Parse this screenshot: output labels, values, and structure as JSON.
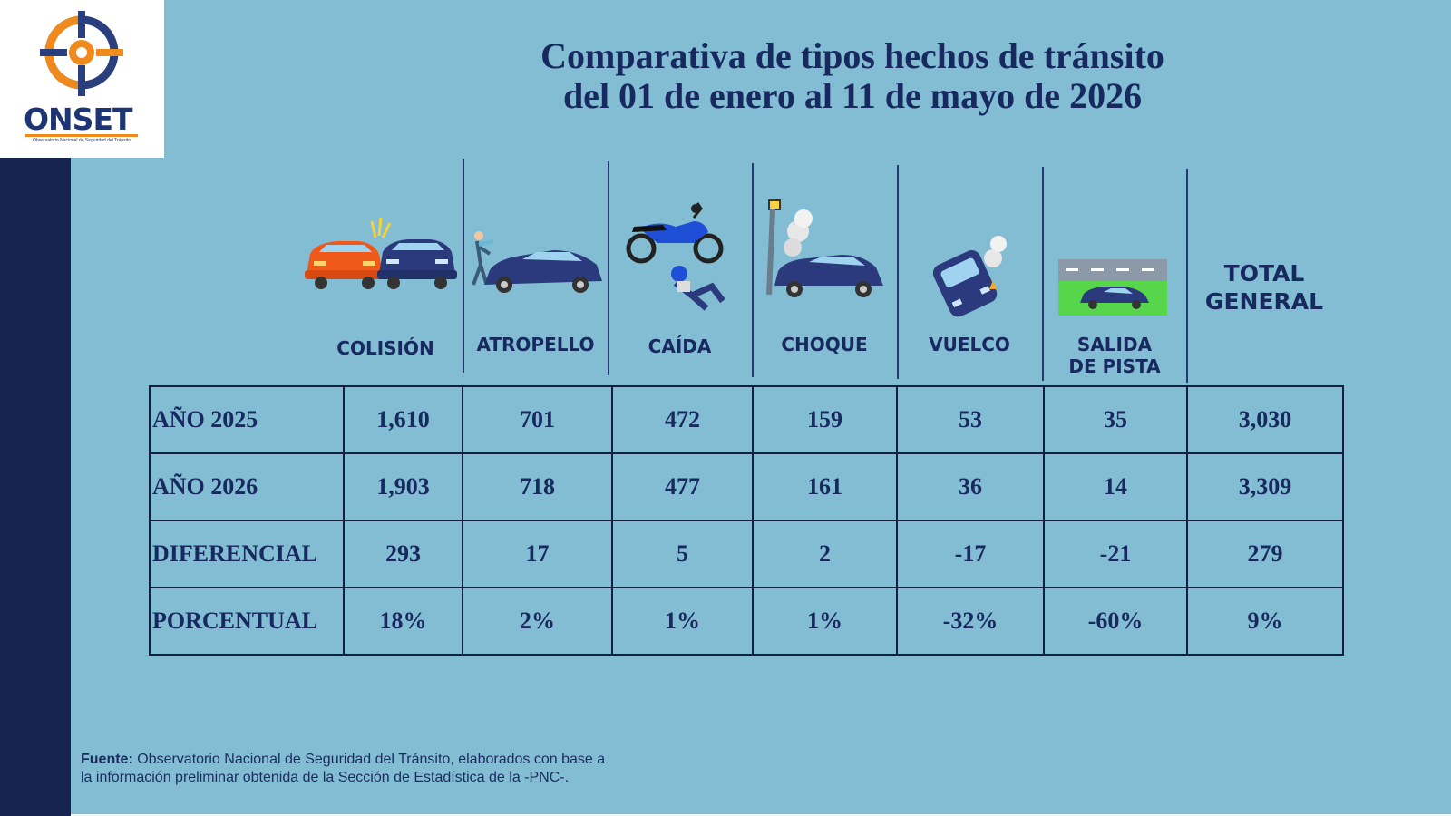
{
  "logo": {
    "name": "ONSET",
    "subtitle": "Observatorio Nacional de Seguridad del Tránsito"
  },
  "title": {
    "line1": "Comparativa de tipos hechos de tránsito",
    "line2": "del 01 de enero al 11 de mayo de 2026"
  },
  "columns": {
    "colision": "COLISIÓN",
    "atropello": "ATROPELLO",
    "caida": "CAÍDA",
    "choque": "CHOQUE",
    "vuelco": "VUELCO",
    "salida_line1": "SALIDA",
    "salida_line2": "DE PISTA",
    "total_line1": "TOTAL",
    "total_line2": "GENERAL"
  },
  "rows": [
    {
      "label": "AÑO 2025",
      "values": [
        "1,610",
        "701",
        "472",
        "159",
        "53",
        "35",
        "3,030"
      ]
    },
    {
      "label": "AÑO 2026",
      "values": [
        "1,903",
        "718",
        "477",
        "161",
        "36",
        "14",
        "3,309"
      ]
    },
    {
      "label": "DIFERENCIAL",
      "values": [
        "293",
        "17",
        "5",
        "2",
        "-17",
        "-21",
        "279"
      ]
    },
    {
      "label": "PORCENTUAL",
      "values": [
        "18%",
        "2%",
        "1%",
        "1%",
        "-32%",
        "-60%",
        "9%"
      ]
    }
  ],
  "source": {
    "label": "Fuente:",
    "line1": "Observatorio Nacional de Seguridad del Tránsito, elaborados con base a",
    "line2": "la información preliminar obtenida de la Sección de Estadística de la -PNC-."
  },
  "colors": {
    "background": "#83bdd3",
    "sidebar": "#17244f",
    "text_dark": "#17295f",
    "accent_orange": "#f08a1c",
    "car_blue": "#2b3a7c"
  },
  "icons": [
    "onset-logo-icon",
    "collision-icon",
    "pedestrian-hit-icon",
    "motorcycle-fall-icon",
    "crash-pole-icon",
    "rollover-icon",
    "off-road-icon"
  ]
}
